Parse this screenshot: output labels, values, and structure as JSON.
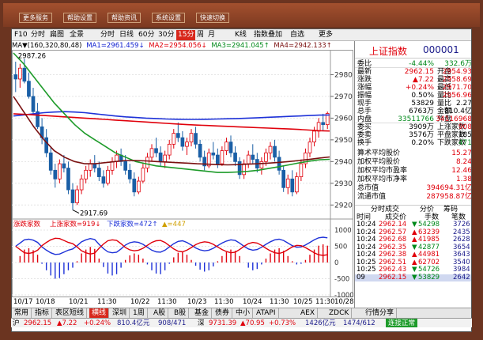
{
  "app": {
    "top_buttons": [
      "更多服务",
      "帮助设置",
      "帮助资讯",
      "系统设置",
      "快速切换"
    ]
  },
  "toolbar": {
    "items": [
      "F10",
      "分时",
      "扁图",
      "全景",
      "分时",
      "日线",
      "60分",
      "30分",
      "15分",
      "周",
      "月",
      "K线",
      "指数叠加",
      "自选",
      "更多"
    ],
    "selected": "15分"
  },
  "ma_legend": {
    "prefix": "MA▼(160,320,80,48)",
    "ma1": "MA1=2961.459↓",
    "ma2": "MA2=2954.056↓",
    "ma3": "MA3=2941.045↑",
    "ma4": "MA4=2942.133↑"
  },
  "colors": {
    "up": "#e0000b",
    "down": "#1a5fa6",
    "ma1": "#1e32d8",
    "ma2": "#e0000b",
    "ma3": "#1e9b2a",
    "ma4": "#7a1010",
    "mid_line": "#888888"
  },
  "chart_data": {
    "type": "candlestick",
    "title": "",
    "price_axis_ticks": [
      2980,
      2970,
      2960,
      2950,
      2940,
      2930,
      2920
    ],
    "ylim": [
      2915,
      2990
    ],
    "annotations": [
      "2987.26",
      "2917.69"
    ],
    "dates": [
      "10/17",
      "10/18",
      "10/21",
      "11:30",
      "10/22",
      "11:30",
      "10/23",
      "11:30",
      "10/24",
      "11:30",
      "10/25",
      "11:30",
      "10/28"
    ],
    "lower_panel": {
      "legend_label": "涨跌家数",
      "rise_label": "上涨家数=919↓",
      "fall_label": "下跌家数=472↑",
      "extra_label": "▲=447",
      "ticks": [
        1000,
        500,
        0,
        -500,
        -1000
      ]
    },
    "candles": [
      [
        2980,
        2986,
        2972,
        2978
      ],
      [
        2978,
        2985,
        2974,
        2983
      ],
      [
        2983,
        2987.26,
        2976,
        2977
      ],
      [
        2977,
        2981,
        2969,
        2970
      ],
      [
        2970,
        2974,
        2962,
        2963
      ],
      [
        2963,
        2967,
        2955,
        2956
      ],
      [
        2956,
        2960,
        2948,
        2951
      ],
      [
        2951,
        2955,
        2942,
        2944
      ],
      [
        2944,
        2947,
        2934,
        2936
      ],
      [
        2936,
        2939,
        2928,
        2932
      ],
      [
        2932,
        2941,
        2930,
        2939
      ],
      [
        2939,
        2943,
        2935,
        2937
      ],
      [
        2937,
        2940,
        2925,
        2927
      ],
      [
        2927,
        2930,
        2917.69,
        2921
      ],
      [
        2921,
        2929,
        2920,
        2927
      ],
      [
        2927,
        2934,
        2925,
        2932
      ],
      [
        2932,
        2938,
        2930,
        2936
      ],
      [
        2936,
        2941,
        2933,
        2939
      ],
      [
        2939,
        2943,
        2935,
        2937
      ],
      [
        2937,
        2940,
        2931,
        2933
      ],
      [
        2933,
        2936,
        2928,
        2930
      ],
      [
        2930,
        2938,
        2929,
        2936
      ],
      [
        2936,
        2942,
        2934,
        2940
      ],
      [
        2940,
        2945,
        2937,
        2943
      ],
      [
        2943,
        2946,
        2938,
        2940
      ],
      [
        2940,
        2943,
        2934,
        2936
      ],
      [
        2936,
        2939,
        2930,
        2932
      ],
      [
        2932,
        2935,
        2924,
        2926
      ],
      [
        2926,
        2933,
        2925,
        2931
      ],
      [
        2931,
        2939,
        2930,
        2937
      ],
      [
        2937,
        2944,
        2935,
        2942
      ],
      [
        2942,
        2948,
        2940,
        2946
      ],
      [
        2946,
        2951,
        2942,
        2944
      ],
      [
        2944,
        2947,
        2938,
        2940
      ],
      [
        2940,
        2945,
        2937,
        2943
      ],
      [
        2943,
        2950,
        2941,
        2948
      ],
      [
        2948,
        2955,
        2946,
        2953
      ],
      [
        2953,
        2958,
        2949,
        2951
      ],
      [
        2951,
        2954,
        2945,
        2947
      ],
      [
        2947,
        2951,
        2943,
        2949
      ],
      [
        2949,
        2955,
        2947,
        2953
      ],
      [
        2953,
        2956,
        2946,
        2948
      ],
      [
        2948,
        2950,
        2940,
        2942
      ],
      [
        2942,
        2945,
        2936,
        2938
      ],
      [
        2938,
        2946,
        2937,
        2944
      ],
      [
        2944,
        2949,
        2941,
        2943
      ],
      [
        2943,
        2946,
        2937,
        2939
      ],
      [
        2939,
        2947,
        2938,
        2945
      ],
      [
        2945,
        2951,
        2943,
        2949
      ],
      [
        2949,
        2952,
        2942,
        2944
      ],
      [
        2944,
        2947,
        2938,
        2940
      ],
      [
        2940,
        2942,
        2932,
        2934
      ],
      [
        2934,
        2941,
        2932,
        2939
      ],
      [
        2939,
        2945,
        2937,
        2943
      ],
      [
        2943,
        2948,
        2939,
        2941
      ],
      [
        2941,
        2944,
        2935,
        2937
      ],
      [
        2937,
        2942,
        2934,
        2940
      ],
      [
        2940,
        2946,
        2938,
        2944
      ],
      [
        2944,
        2949,
        2941,
        2947
      ],
      [
        2947,
        2950,
        2940,
        2942
      ],
      [
        2942,
        2945,
        2934,
        2936
      ],
      [
        2936,
        2938,
        2926,
        2928
      ],
      [
        2928,
        2934,
        2925,
        2932
      ],
      [
        2932,
        2936,
        2924,
        2926
      ],
      [
        2926,
        2935,
        2925,
        2933
      ],
      [
        2933,
        2941,
        2931,
        2939
      ],
      [
        2939,
        2946,
        2937,
        2944
      ],
      [
        2944,
        2951,
        2942,
        2949
      ],
      [
        2949,
        2956,
        2947,
        2954
      ],
      [
        2954,
        2960,
        2951,
        2958
      ],
      [
        2958,
        2962,
        2954,
        2957
      ],
      [
        2957,
        2963,
        2955,
        2962.15
      ]
    ],
    "ma_lines": [
      {
        "name": "MA1",
        "values": [
          2961,
          2961.5,
          2962,
          2962.5,
          2962.8,
          2963,
          2962.8,
          2962.5,
          2962,
          2961.5,
          2961,
          2960.6,
          2960.3,
          2960,
          2959.8,
          2959.6,
          2959.5,
          2959.4,
          2959.4,
          2959.5,
          2959.6,
          2959.7,
          2959.8,
          2960,
          2960.2,
          2960.4,
          2960.6,
          2960.8,
          2961,
          2961.2,
          2961.4,
          2961.459
        ]
      },
      {
        "name": "MA2",
        "values": [
          2962,
          2961.8,
          2961.5,
          2961.2,
          2960.9,
          2960.6,
          2960.3,
          2960,
          2959.7,
          2959.4,
          2959.1,
          2958.8,
          2958.5,
          2958.2,
          2957.9,
          2957.6,
          2957.3,
          2957,
          2956.8,
          2956.6,
          2956.4,
          2956.2,
          2956,
          2955.8,
          2955.6,
          2955.4,
          2955.2,
          2955,
          2954.8,
          2954.5,
          2954.2,
          2954.056
        ]
      },
      {
        "name": "MA3",
        "values": [
          2990,
          2985,
          2979,
          2973,
          2967,
          2962,
          2957,
          2953,
          2950,
          2947,
          2944,
          2942,
          2940,
          2939,
          2938,
          2937.5,
          2937,
          2936.5,
          2936,
          2935.5,
          2935,
          2935,
          2935.2,
          2935.5,
          2936,
          2936.8,
          2937.6,
          2938.5,
          2939.4,
          2940.2,
          2940.8,
          2941.045
        ]
      },
      {
        "name": "MA4",
        "values": [
          2970,
          2963,
          2956,
          2950,
          2945,
          2942,
          2940,
          2939,
          2939,
          2939.5,
          2940,
          2940.5,
          2940.5,
          2940.3,
          2940,
          2939.8,
          2939.5,
          2939.3,
          2939,
          2938.8,
          2938.6,
          2938.5,
          2938.6,
          2938.8,
          2939,
          2939.3,
          2939.6,
          2940,
          2940.5,
          2941,
          2941.6,
          2942.133
        ]
      }
    ],
    "breadth_up": [
      500,
      600,
      700,
      720,
      690,
      620,
      480,
      380,
      300,
      250,
      260,
      320,
      380,
      420,
      520,
      640,
      700,
      740,
      710,
      560,
      430,
      330,
      300,
      320,
      420,
      540,
      610,
      640,
      620,
      560,
      470,
      380,
      330,
      320,
      380,
      480,
      580,
      650,
      670,
      620,
      540,
      450,
      390,
      360,
      380,
      440,
      520,
      600,
      660,
      700,
      680,
      600,
      500,
      420,
      380,
      400,
      470,
      560,
      640,
      700,
      720,
      680,
      600,
      520,
      470,
      480,
      540,
      620,
      700,
      760,
      780,
      760
    ],
    "breadth_down": [
      500,
      400,
      300,
      280,
      310,
      380,
      520,
      620,
      700,
      750,
      740,
      680,
      620,
      580,
      480,
      360,
      300,
      260,
      290,
      440,
      570,
      670,
      700,
      680,
      580,
      460,
      390,
      360,
      380,
      440,
      530,
      620,
      670,
      680,
      620,
      520,
      420,
      350,
      330,
      380,
      460,
      550,
      610,
      640,
      620,
      560,
      480,
      400,
      340,
      300,
      320,
      400,
      500,
      580,
      620,
      600,
      530,
      440,
      360,
      300,
      280,
      320,
      400,
      480,
      530,
      520,
      460,
      380,
      300,
      240,
      220,
      240
    ],
    "breadth_net": [
      0,
      200,
      400,
      440,
      380,
      240,
      -40,
      -240,
      -400,
      -500,
      -480,
      -360,
      -240,
      -160,
      40,
      280,
      400,
      480,
      420,
      120,
      -140,
      -340,
      -400,
      -360,
      -160,
      80,
      220,
      280,
      240,
      120,
      -60,
      -240,
      -340,
      -360,
      -240,
      -40,
      160,
      300,
      340,
      240,
      80,
      -100,
      -220,
      -280,
      -240,
      -120,
      40,
      200,
      320,
      400,
      360,
      200,
      0,
      -160,
      -240,
      -200,
      -60,
      120,
      280,
      400,
      440,
      360,
      200,
      40,
      -60,
      -40,
      80,
      240,
      400,
      520,
      560,
      520
    ]
  },
  "x_axis": {
    "labels": [
      "10/17",
      "10/18",
      "10/21",
      "11:30",
      "10/22",
      "11:30",
      "10/23",
      "11:30",
      "10/24",
      "11:30",
      "10/25",
      "11:30",
      "10/28"
    ],
    "right_label": "◄15分▶"
  },
  "panel": {
    "title": "上证指数",
    "code": "000001",
    "rows": [
      {
        "l": "委比",
        "v": "-4.44%",
        "v_color": "green",
        "l2": "",
        "v2": "332.6万",
        "v2_color": "green"
      },
      {
        "l": "最新",
        "v": "2962.15",
        "v_color": "red",
        "l2": "开盘",
        "v2": "2954.93",
        "v2_color": "red"
      },
      {
        "l": "涨跌",
        "v": "▲7.22",
        "v_color": "red",
        "l2": "最高",
        "v2": "2958.69",
        "v2_color": "red"
      },
      {
        "l": "涨幅",
        "v": "+0.24%",
        "v_color": "red",
        "l2": "最低",
        "v2": "2971.70",
        "v2_color": "red"
      },
      {
        "l": "振幅",
        "v": "0.50%",
        "v_color": "black",
        "l2": "量比",
        "v2": "2956.96",
        "v2_color": "red"
      },
      {
        "l": "现手",
        "v": "53829",
        "v_color": "black",
        "l2": "量比",
        "v2": "2.27",
        "v2_color": "black"
      },
      {
        "l": "总手",
        "v": "6763万",
        "v_color": "black",
        "l2": "金额",
        "v2": "810.4亿",
        "v2_color": "black"
      },
      {
        "l": "内盘",
        "v": "33511766",
        "v_color": "green",
        "l2": "外盘",
        "v2": "34116968",
        "v2_color": "red"
      },
      {
        "l": "委买",
        "v": "3909万",
        "v_color": "black",
        "l2": "上涨家数",
        "v2": "908",
        "v2_color": "red"
      },
      {
        "l": "委卖",
        "v": "3576万",
        "v_color": "black",
        "l2": "平盘家数",
        "v2": "185",
        "v2_color": "black"
      },
      {
        "l": "换手",
        "v": "0.20%",
        "v_color": "black",
        "l2": "下跌家数",
        "v2": "471",
        "v2_color": "green"
      }
    ],
    "stats": [
      {
        "l": "算术平均股价",
        "v": "15.27"
      },
      {
        "l": "加权平均股价",
        "v": "8.24"
      },
      {
        "l": "加权平均市盈率",
        "v": "12.46"
      },
      {
        "l": "加权平均市净率",
        "v": "1.38"
      },
      {
        "l": "总市值",
        "v": "394694.31亿"
      },
      {
        "l": "流通市值",
        "v": "287958.87亿"
      }
    ],
    "tick_tabs": [
      "分时成交",
      "分价",
      "筹码"
    ],
    "tick_headers": [
      "时间",
      "成交价",
      "手数",
      "笔数"
    ],
    "ticks": [
      {
        "t": "10:24",
        "p": "2962.14",
        "d": "▼",
        "q": "54298",
        "n": "3726"
      },
      {
        "t": "10:24",
        "p": "2962.57",
        "d": "▲",
        "q": "63239",
        "n": "2435"
      },
      {
        "t": "10:24",
        "p": "2962.68",
        "d": "▲",
        "q": "41985",
        "n": "2628"
      },
      {
        "t": "10:24",
        "p": "2962.35",
        "d": "▼",
        "q": "42877",
        "n": "3654"
      },
      {
        "t": "10:24",
        "p": "2962.38",
        "d": "▲",
        "q": "44981",
        "n": "3643"
      },
      {
        "t": "10:25",
        "p": "2962.51",
        "d": "▲",
        "q": "62702",
        "n": "3540"
      },
      {
        "t": "10:25",
        "p": "2962.43",
        "d": "▼",
        "q": "54726",
        "n": "3984"
      },
      {
        "t": "09",
        "p": "2962.15",
        "d": "▼",
        "q": "53829",
        "n": "2642"
      }
    ]
  },
  "bottom_tabs": [
    "常用",
    "指标",
    "表区短线",
    "横线",
    "深圳",
    "1周",
    "A股",
    "B股",
    "基金",
    "债券",
    "中小",
    "ATAPI",
    "AEX",
    "ZDCK",
    "行情分享"
  ],
  "statusbar": {
    "index1": "沪",
    "price1": "2962.15",
    "chg1": "▲7.22",
    "pct1": "+0.24%",
    "amt1": "810.4亿元",
    "ratio1": "908/471",
    "index2": "深",
    "price2": "9731.39",
    "chg2": "▲70.95",
    "pct2": "+0.73%",
    "amt2": "1426亿元",
    "ratio2": "1474/612",
    "status": "连接正常"
  }
}
